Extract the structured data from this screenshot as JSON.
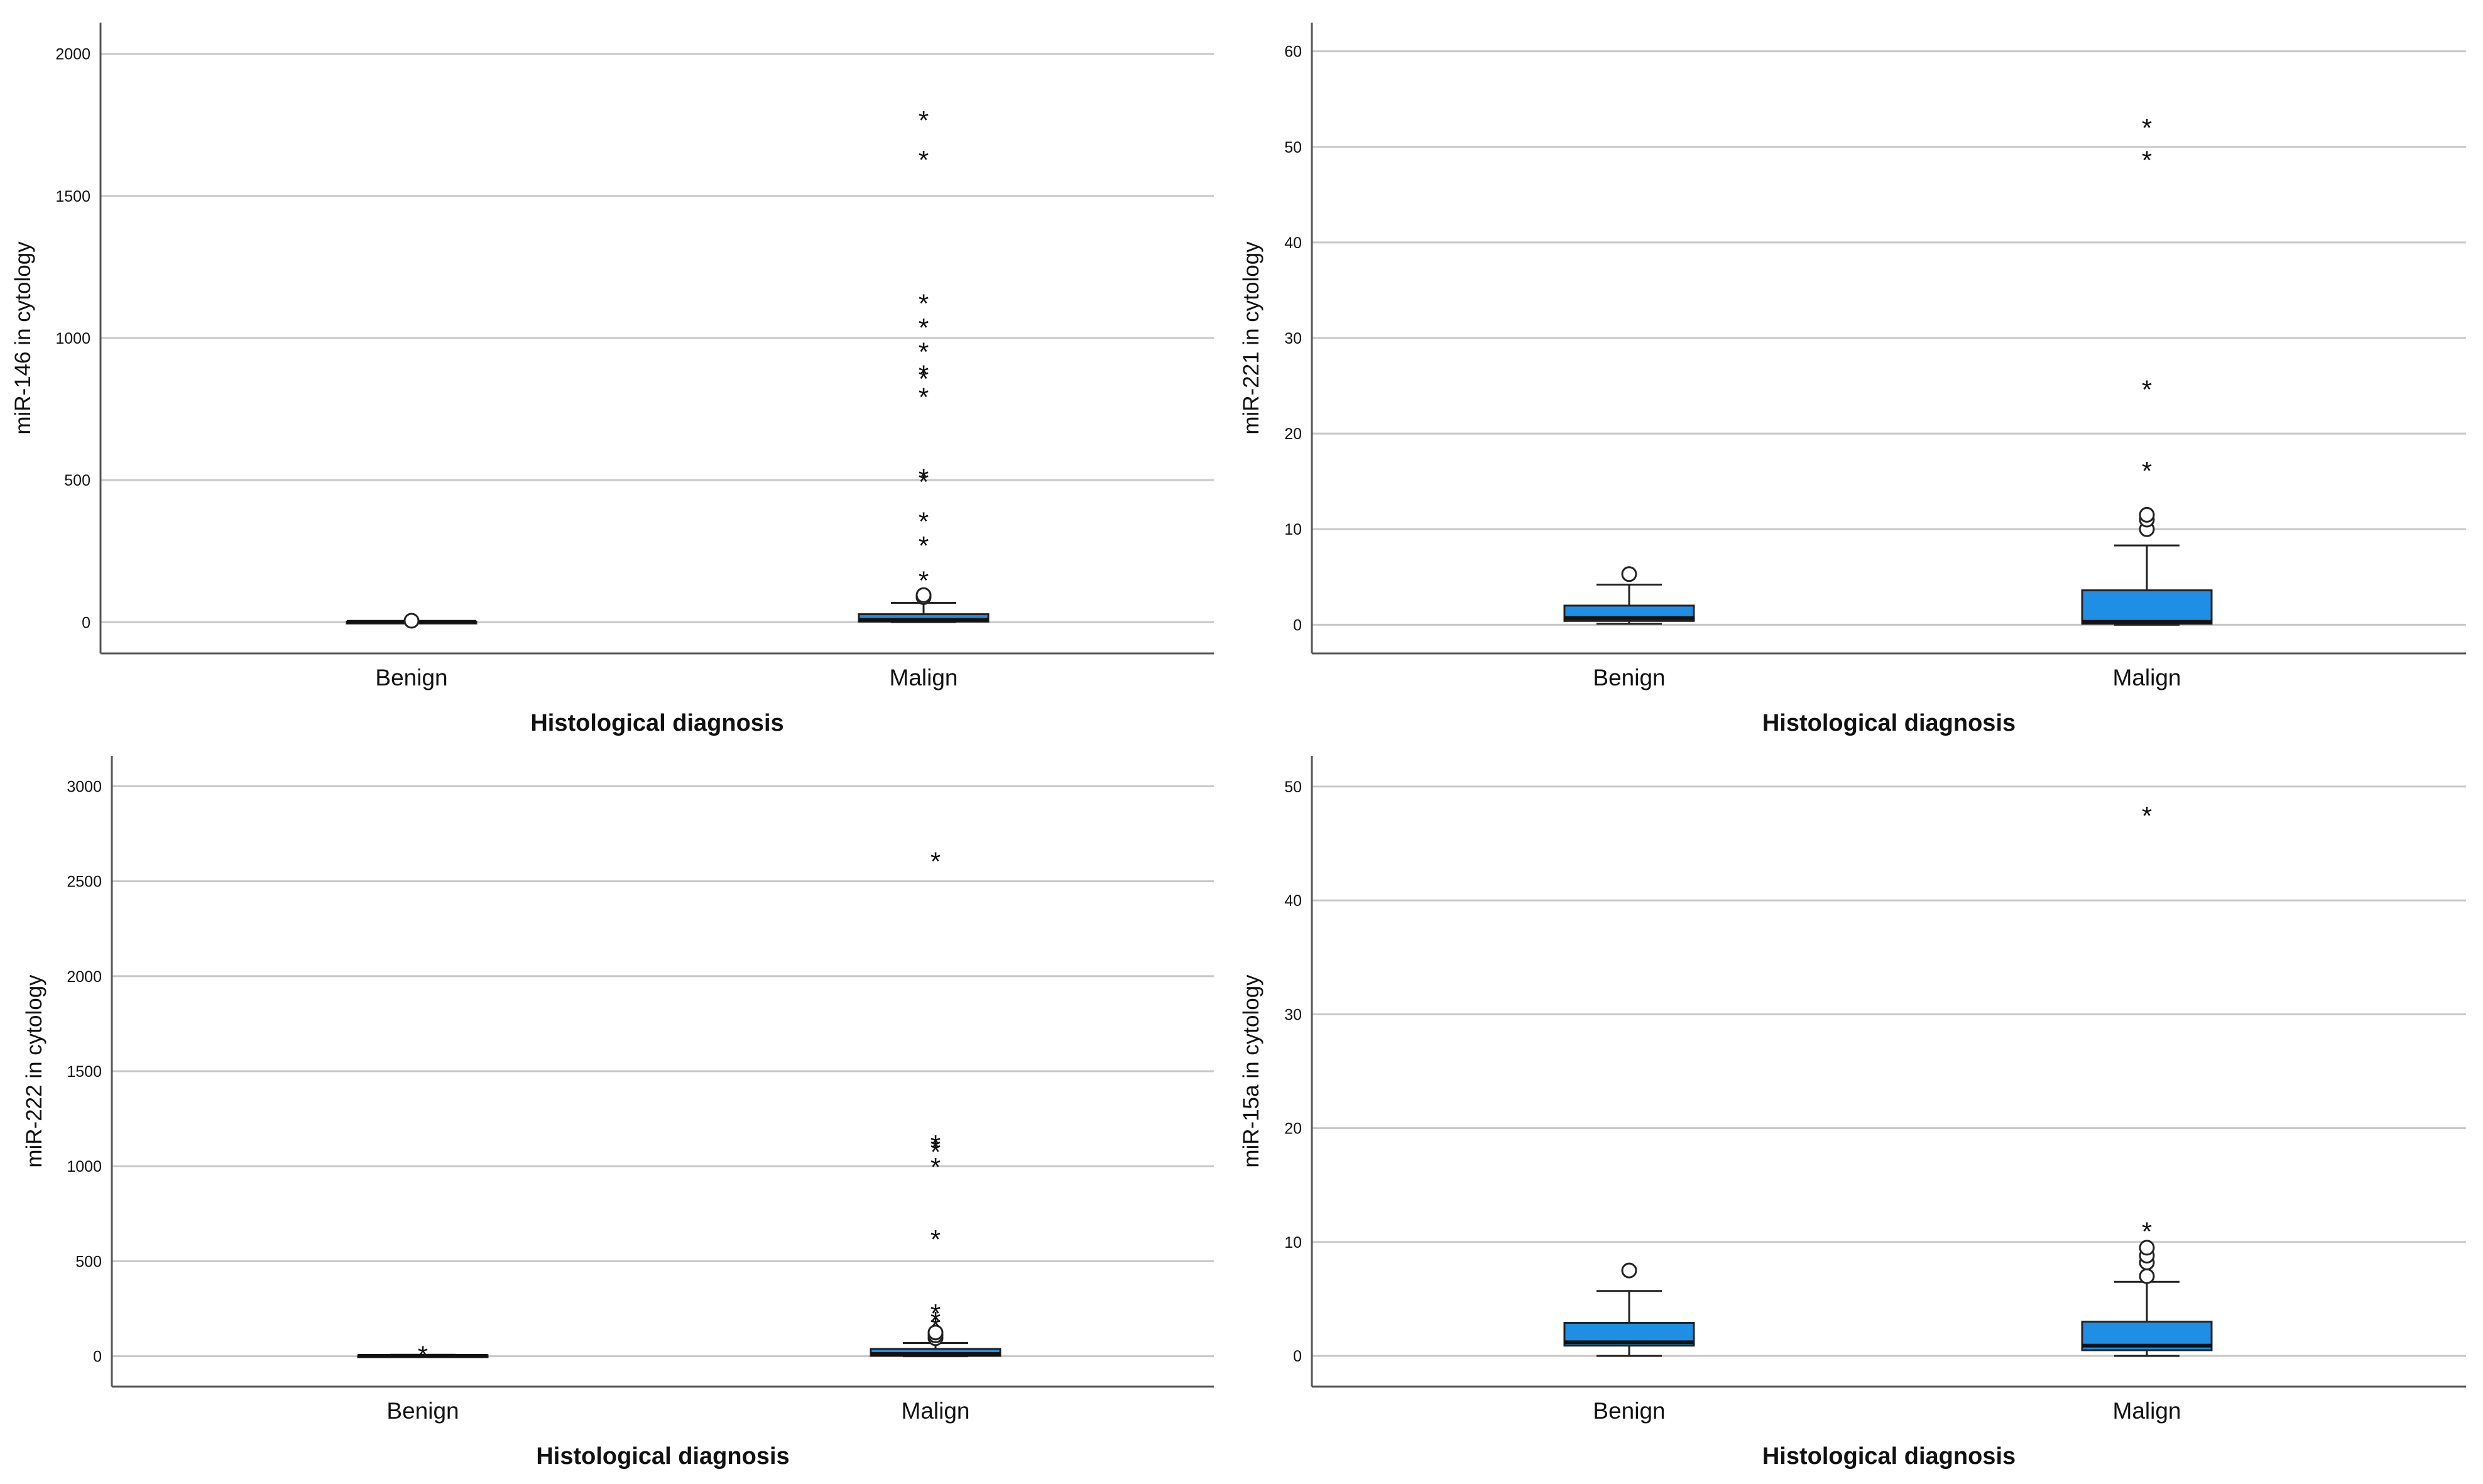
{
  "chart_data": [
    {
      "type": "boxplot",
      "panel": "top-left",
      "xlabel": "Histological diagnosis",
      "ylabel": "miR-146 in cytology",
      "ylim": [
        -110,
        2110
      ],
      "yticks": [
        0,
        500,
        1000,
        1500,
        2000
      ],
      "categories": [
        "Benign",
        "Malign"
      ],
      "box_color": "#1f8fe6",
      "series": [
        {
          "name": "Benign",
          "min": 0,
          "q1": 0.5,
          "median": 1,
          "q3": 2,
          "max": 3,
          "outliers": [
            5
          ],
          "extremes": []
        },
        {
          "name": "Malign",
          "min": 0,
          "q1": 2,
          "median": 8,
          "q3": 28,
          "max": 68,
          "outliers": [
            88,
            95
          ],
          "extremes": [
            150,
            272,
            358,
            497,
            510,
            795,
            860,
            875,
            955,
            1040,
            1125,
            1630,
            1770
          ]
        }
      ]
    },
    {
      "type": "boxplot",
      "panel": "top-right",
      "xlabel": "Histological diagnosis",
      "ylabel": "miR-221 in cytology",
      "ylim": [
        -3,
        63
      ],
      "yticks": [
        0,
        10,
        20,
        30,
        40,
        50,
        60
      ],
      "categories": [
        "Benign",
        "Malign"
      ],
      "box_color": "#1f8fe6",
      "series": [
        {
          "name": "Benign",
          "min": 0.1,
          "q1": 0.4,
          "median": 0.7,
          "q3": 2,
          "max": 4.2,
          "outliers": [
            5.3
          ],
          "extremes": []
        },
        {
          "name": "Malign",
          "min": 0,
          "q1": 0.1,
          "median": 0.3,
          "q3": 3.6,
          "max": 8.3,
          "outliers": [
            10,
            11,
            11.5
          ],
          "extremes": [
            16.2,
            24.7,
            48.7,
            52.1
          ]
        }
      ]
    },
    {
      "type": "boxplot",
      "panel": "bottom-left",
      "xlabel": "Histological diagnosis",
      "ylabel": "miR-222 in cytology",
      "ylim": [
        -160,
        3160
      ],
      "yticks": [
        0,
        500,
        1000,
        1500,
        2000,
        2500,
        3000
      ],
      "categories": [
        "Benign",
        "Malign"
      ],
      "box_color": "#1f8fe6",
      "series": [
        {
          "name": "Benign",
          "min": 0,
          "q1": 1,
          "median": 2,
          "q3": 5,
          "max": 8,
          "outliers": [],
          "extremes": [
            10
          ]
        },
        {
          "name": "Malign",
          "min": 0,
          "q1": 2,
          "median": 12,
          "q3": 38,
          "max": 70,
          "outliers": [
            95,
            110,
            125
          ],
          "extremes": [
            160,
            190,
            230,
            620,
            1000,
            1080,
            1100,
            1120,
            2610
          ]
        }
      ]
    },
    {
      "type": "boxplot",
      "panel": "bottom-right",
      "xlabel": "Histological diagnosis",
      "ylabel": "miR-15a in cytology",
      "ylim": [
        -2.7,
        52.7
      ],
      "yticks": [
        0,
        10,
        20,
        30,
        40,
        50
      ],
      "categories": [
        "Benign",
        "Malign"
      ],
      "box_color": "#1f8fe6",
      "series": [
        {
          "name": "Benign",
          "min": 0,
          "q1": 0.9,
          "median": 1.2,
          "q3": 2.9,
          "max": 5.7,
          "outliers": [
            7.5
          ],
          "extremes": []
        },
        {
          "name": "Malign",
          "min": 0,
          "q1": 0.5,
          "median": 0.9,
          "q3": 3.0,
          "max": 6.5,
          "outliers": [
            7,
            8.2,
            8.8,
            9.5
          ],
          "extremes": [
            11,
            47.5
          ]
        }
      ]
    }
  ]
}
